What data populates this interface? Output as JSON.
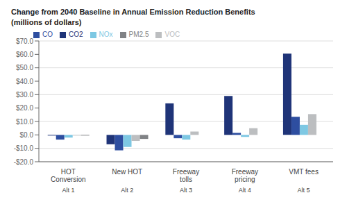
{
  "chart_data": {
    "type": "bar",
    "title": "Change from 2040 Baseline in Annual Emission Reduction Benefits",
    "subtitle": "(millions of dollars)",
    "categories": [
      "HOT\nConversion",
      "New HOT",
      "Freeway\ntolls",
      "Freeway\npricing",
      "VMT fees"
    ],
    "annotations": [
      {
        "text": "Alt 1",
        "x": "HOT\nConversion"
      },
      {
        "text": "Alt 2",
        "x": "New HOT"
      },
      {
        "text": "Alt 3",
        "x": "Freeway\ntolls"
      },
      {
        "text": "Alt 4",
        "x": "Freeway\npricing"
      },
      {
        "text": "Alt 5",
        "x": "VMT fees"
      }
    ],
    "series": [
      {
        "name": "CO2",
        "color": "#1F3478",
        "values": [
          -0.5,
          -7.0,
          23.5,
          29.0,
          60.5
        ]
      },
      {
        "name": "CO",
        "color": "#2E4EA0",
        "values": [
          -3.5,
          -11.5,
          -2.5,
          1.5,
          13.5
        ]
      },
      {
        "name": "NOx",
        "color": "#7EC8E3",
        "values": [
          -2.0,
          -9.0,
          -3.5,
          -1.5,
          7.5
        ]
      },
      {
        "name": "VOC",
        "color": "#BCBEC0",
        "values": [
          -0.5,
          -4.5,
          2.5,
          5.0,
          15.5
        ]
      },
      {
        "name": "PM2.5",
        "color": "#808285",
        "values": [
          -0.5,
          -3.0,
          0.0,
          0.0,
          0.0
        ]
      }
    ],
    "ylim": [
      -20,
      70
    ],
    "yticks": [
      {
        "value": -20,
        "label": "-$20.0"
      },
      {
        "value": -10,
        "label": "-$10.0"
      },
      {
        "value": 0,
        "label": "$0.0"
      },
      {
        "value": 10,
        "label": "$10.0"
      },
      {
        "value": 20,
        "label": "$20.0"
      },
      {
        "value": 30,
        "label": "$30.0"
      },
      {
        "value": 40,
        "label": "$40.0"
      },
      {
        "value": 50,
        "label": "$50.0"
      },
      {
        "value": 60,
        "label": "$60.0"
      },
      {
        "value": 70,
        "label": "$70.0"
      }
    ],
    "grid": true,
    "legend": "upper left"
  }
}
